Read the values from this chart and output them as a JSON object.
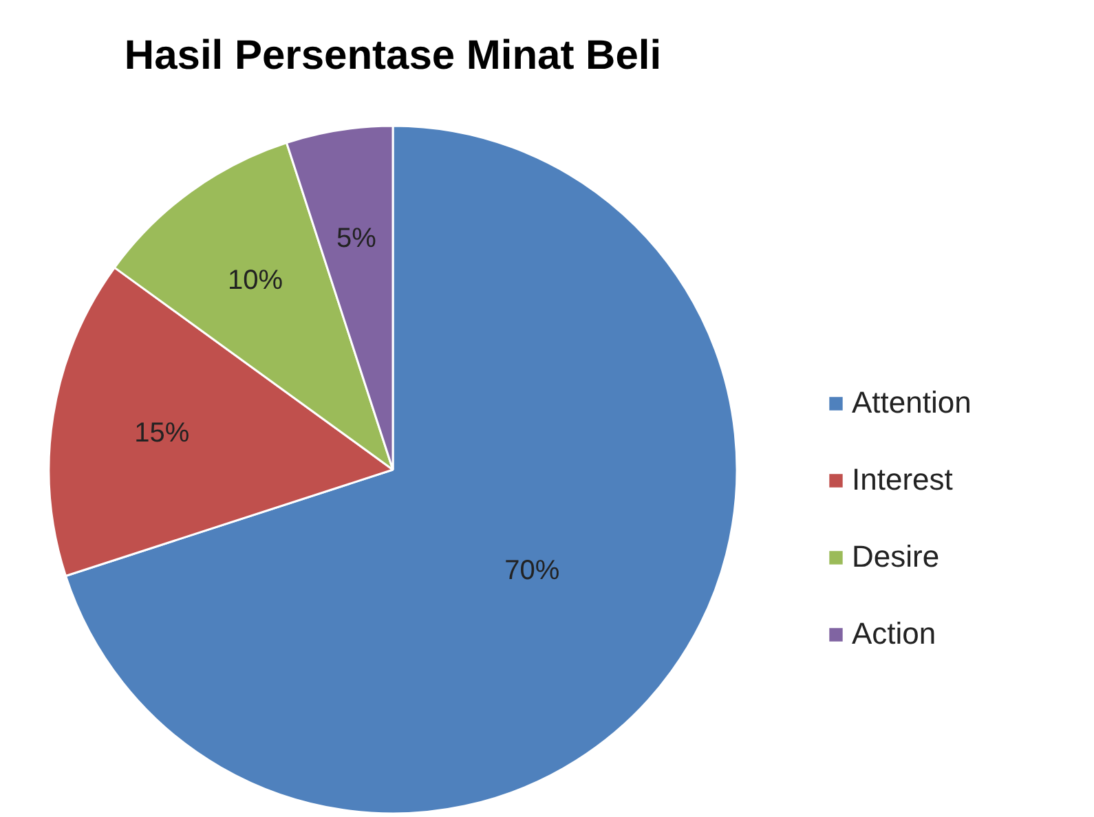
{
  "chart_data": {
    "type": "pie",
    "title": "Hasil Persentase Minat Beli",
    "categories": [
      "Attention",
      "Interest",
      "Desire",
      "Action"
    ],
    "values": [
      70,
      15,
      10,
      5
    ],
    "value_labels": [
      "70%",
      "15%",
      "10%",
      "5%"
    ],
    "colors": [
      "#4f81bd",
      "#c0504d",
      "#9bbb59",
      "#8064a2"
    ],
    "legend": "right"
  }
}
